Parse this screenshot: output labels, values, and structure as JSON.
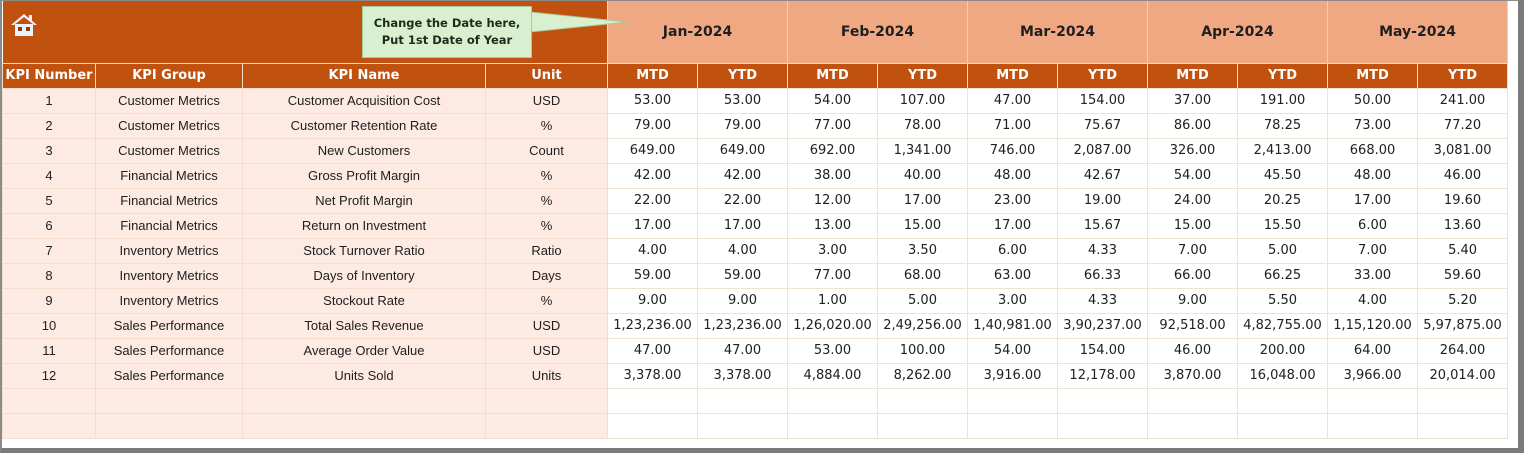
{
  "header": {
    "home_icon": "home-icon",
    "callout": {
      "line1": "Change the Date here,",
      "line2": "Put 1st Date of Year"
    },
    "months": [
      "Jan-2024",
      "Feb-2024",
      "Mar-2024",
      "Apr-2024",
      "May-2024"
    ]
  },
  "columns": {
    "kpi_number": "KPI Number",
    "kpi_group": "KPI Group",
    "kpi_name": "KPI Name",
    "unit": "Unit",
    "mtd": "MTD",
    "ytd": "YTD"
  },
  "colors": {
    "header_dark": "#c0510f",
    "header_month": "#f0a883",
    "label_bg": "#fdebe3",
    "callout_bg": "#d9f0d0"
  },
  "rows": [
    {
      "num": "1",
      "group": "Customer Metrics",
      "name": "Customer Acquisition Cost",
      "unit": "USD",
      "values": [
        "53.00",
        "53.00",
        "54.00",
        "107.00",
        "47.00",
        "154.00",
        "37.00",
        "191.00",
        "50.00",
        "241.00"
      ]
    },
    {
      "num": "2",
      "group": "Customer Metrics",
      "name": "Customer Retention Rate",
      "unit": "%",
      "values": [
        "79.00",
        "79.00",
        "77.00",
        "78.00",
        "71.00",
        "75.67",
        "86.00",
        "78.25",
        "73.00",
        "77.20"
      ]
    },
    {
      "num": "3",
      "group": "Customer Metrics",
      "name": "New Customers",
      "unit": "Count",
      "values": [
        "649.00",
        "649.00",
        "692.00",
        "1,341.00",
        "746.00",
        "2,087.00",
        "326.00",
        "2,413.00",
        "668.00",
        "3,081.00"
      ]
    },
    {
      "num": "4",
      "group": "Financial Metrics",
      "name": "Gross Profit Margin",
      "unit": "%",
      "values": [
        "42.00",
        "42.00",
        "38.00",
        "40.00",
        "48.00",
        "42.67",
        "54.00",
        "45.50",
        "48.00",
        "46.00"
      ]
    },
    {
      "num": "5",
      "group": "Financial Metrics",
      "name": "Net Profit Margin",
      "unit": "%",
      "values": [
        "22.00",
        "22.00",
        "12.00",
        "17.00",
        "23.00",
        "19.00",
        "24.00",
        "20.25",
        "17.00",
        "19.60"
      ]
    },
    {
      "num": "6",
      "group": "Financial Metrics",
      "name": "Return on Investment",
      "unit": "%",
      "values": [
        "17.00",
        "17.00",
        "13.00",
        "15.00",
        "17.00",
        "15.67",
        "15.00",
        "15.50",
        "6.00",
        "13.60"
      ]
    },
    {
      "num": "7",
      "group": "Inventory Metrics",
      "name": "Stock Turnover Ratio",
      "unit": "Ratio",
      "values": [
        "4.00",
        "4.00",
        "3.00",
        "3.50",
        "6.00",
        "4.33",
        "7.00",
        "5.00",
        "7.00",
        "5.40"
      ]
    },
    {
      "num": "8",
      "group": "Inventory Metrics",
      "name": "Days of Inventory",
      "unit": "Days",
      "values": [
        "59.00",
        "59.00",
        "77.00",
        "68.00",
        "63.00",
        "66.33",
        "66.00",
        "66.25",
        "33.00",
        "59.60"
      ]
    },
    {
      "num": "9",
      "group": "Inventory Metrics",
      "name": "Stockout Rate",
      "unit": "%",
      "values": [
        "9.00",
        "9.00",
        "1.00",
        "5.00",
        "3.00",
        "4.33",
        "9.00",
        "5.50",
        "4.00",
        "5.20"
      ]
    },
    {
      "num": "10",
      "group": "Sales Performance",
      "name": "Total Sales Revenue",
      "unit": "USD",
      "values": [
        "1,23,236.00",
        "1,23,236.00",
        "1,26,020.00",
        "2,49,256.00",
        "1,40,981.00",
        "3,90,237.00",
        "92,518.00",
        "4,82,755.00",
        "1,15,120.00",
        "5,97,875.00"
      ]
    },
    {
      "num": "11",
      "group": "Sales Performance",
      "name": "Average Order Value",
      "unit": "USD",
      "values": [
        "47.00",
        "47.00",
        "53.00",
        "100.00",
        "54.00",
        "154.00",
        "46.00",
        "200.00",
        "64.00",
        "264.00"
      ]
    },
    {
      "num": "12",
      "group": "Sales Performance",
      "name": "Units Sold",
      "unit": "Units",
      "values": [
        "3,378.00",
        "3,378.00",
        "4,884.00",
        "8,262.00",
        "3,916.00",
        "12,178.00",
        "3,870.00",
        "16,048.00",
        "3,966.00",
        "20,014.00"
      ]
    }
  ],
  "empty_rows": 2
}
